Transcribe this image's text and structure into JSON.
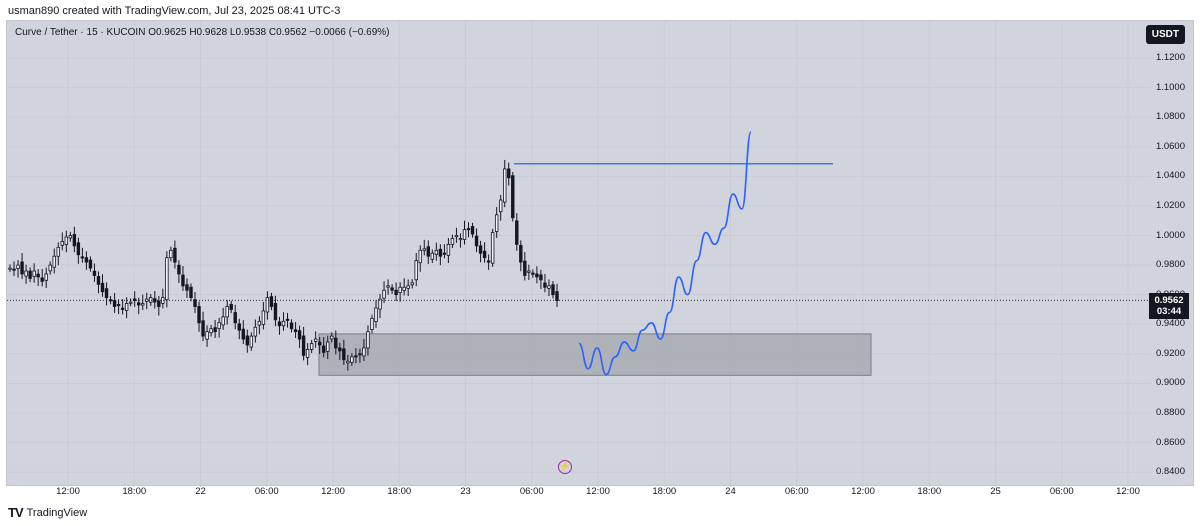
{
  "header": {
    "created_by": "usman890 created with TradingView.com, Jul 23, 2025 08:41 UTC-3"
  },
  "legend": {
    "text": "Curve / Tether · 15 · KUCOIN  O0.9625  H0.9628  L0.9538  C0.9562  −0.0066 (−0.69%)"
  },
  "unit": "USDT",
  "last_price": {
    "price": "0.9562",
    "countdown": "03:44"
  },
  "footer": {
    "brand": "TradingView"
  },
  "colors": {
    "up": "#131722",
    "down": "#131722",
    "zone": "#a3a6ae",
    "drawing": "#2962ff"
  },
  "chart_data": {
    "type": "candlestick",
    "title": "",
    "ylim": [
      0.83,
      1.145
    ],
    "y_ticks": [
      "1.1200",
      "1.1000",
      "1.0800",
      "1.0600",
      "1.0400",
      "1.0200",
      "1.0000",
      "0.9800",
      "0.9600",
      "0.9400",
      "0.9200",
      "0.9000",
      "0.8800",
      "0.8600",
      "0.8400"
    ],
    "x_ticks": [
      "12:00",
      "18:00",
      "22",
      "06:00",
      "12:00",
      "18:00",
      "23",
      "06:00",
      "12:00",
      "18:00",
      "24",
      "06:00",
      "12:00",
      "18:00",
      "25",
      "06:00",
      "12:00"
    ],
    "close_path": [
      0.978,
      0.977,
      0.98,
      0.974,
      0.976,
      0.971,
      0.976,
      0.972,
      0.969,
      0.974,
      0.98,
      0.986,
      0.992,
      0.996,
      0.999,
      1.0,
      0.993,
      0.987,
      0.985,
      0.982,
      0.978,
      0.973,
      0.967,
      0.962,
      0.958,
      0.956,
      0.952,
      0.953,
      0.95,
      0.954,
      0.955,
      0.956,
      0.953,
      0.954,
      0.957,
      0.958,
      0.955,
      0.952,
      0.958,
      0.985,
      0.99,
      0.982,
      0.974,
      0.966,
      0.963,
      0.958,
      0.952,
      0.941,
      0.932,
      0.935,
      0.937,
      0.935,
      0.941,
      0.945,
      0.952,
      0.95,
      0.941,
      0.936,
      0.93,
      0.926,
      0.932,
      0.938,
      0.942,
      0.949,
      0.958,
      0.952,
      0.943,
      0.939,
      0.942,
      0.943,
      0.937,
      0.935,
      0.93,
      0.919,
      0.923,
      0.927,
      0.93,
      0.926,
      0.921,
      0.928,
      0.932,
      0.924,
      0.922,
      0.916,
      0.915,
      0.918,
      0.918,
      0.92,
      0.924,
      0.935,
      0.944,
      0.951,
      0.957,
      0.963,
      0.966,
      0.963,
      0.96,
      0.965,
      0.965,
      0.966,
      0.968,
      0.983,
      0.99,
      0.991,
      0.986,
      0.988,
      0.99,
      0.986,
      0.988,
      0.994,
      0.998,
      1.0,
      0.998,
      1.004,
      1.004,
      1.001,
      0.993,
      0.988,
      0.985,
      0.982,
      1.002,
      1.014,
      1.024,
      1.045,
      1.039,
      1.012,
      0.994,
      0.982,
      0.973,
      0.976,
      0.974,
      0.972,
      0.97,
      0.965,
      0.966,
      0.96,
      0.956
    ],
    "demand_zone": {
      "price_top": 0.9335,
      "price_bottom": 0.9055
    },
    "resistance_line": {
      "price": 1.0485
    },
    "projection_path": [
      0.927,
      0.91,
      0.924,
      0.906,
      0.918,
      0.928,
      0.922,
      0.936,
      0.941,
      0.93,
      0.948,
      0.972,
      0.96,
      0.983,
      1.002,
      0.994,
      1.005,
      1.028,
      1.018,
      1.07
    ]
  }
}
